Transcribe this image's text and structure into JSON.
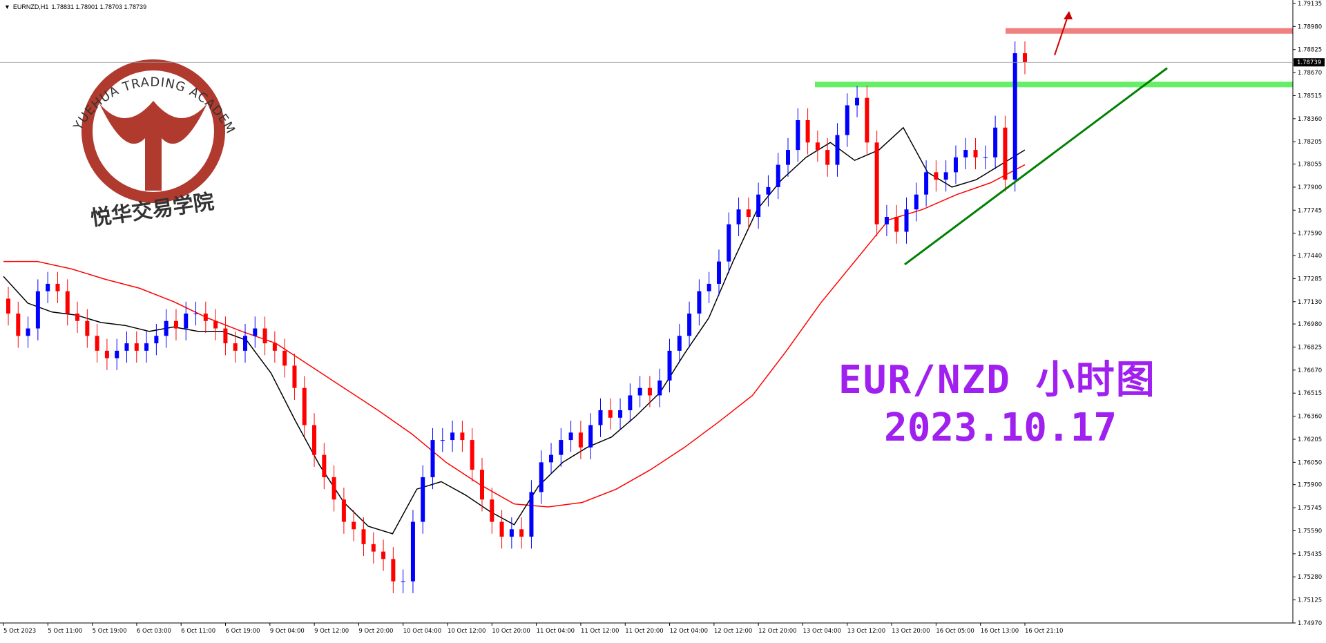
{
  "header": {
    "dropdown_glyph": "▼",
    "symbol": "EURNZD,H1",
    "ohlc": "1.78831 1.78901 1.78703 1.78739"
  },
  "watermark": {
    "arc_text": "YUEHUA TRADING ACADEMY",
    "cn_text": "悦华交易学院",
    "color": "#b03a2e"
  },
  "annotation": {
    "title": "EUR/NZD 小时图",
    "date": "2023.10.17",
    "color": "#a020f0"
  },
  "colors": {
    "bull": "#0000ff",
    "bear": "#ff0000",
    "ma_fast": "#000000",
    "ma_slow": "#ff0000",
    "support": "#66ee66",
    "resistance": "#f08080",
    "trendline": "#008000",
    "arrow": "#cc0000"
  },
  "chart_data": {
    "type": "candlestick",
    "symbol": "EURNZD",
    "timeframe": "H1",
    "ylim": [
      1.7497,
      1.7913
    ],
    "current_price": "1.78739",
    "y_ticks": [
      "1.79135",
      "1.78980",
      "1.78825",
      "1.78670",
      "1.78515",
      "1.78360",
      "1.78205",
      "1.78055",
      "1.77900",
      "1.77745",
      "1.77590",
      "1.77440",
      "1.77285",
      "1.77130",
      "1.76980",
      "1.76825",
      "1.76670",
      "1.76515",
      "1.76360",
      "1.76205",
      "1.76050",
      "1.75900",
      "1.75745",
      "1.75590",
      "1.75435",
      "1.75280",
      "1.75125",
      "1.74970"
    ],
    "x_ticks": [
      "5 Oct 2023",
      "5 Oct 11:00",
      "5 Oct 19:00",
      "6 Oct 03:00",
      "6 Oct 11:00",
      "6 Oct 19:00",
      "9 Oct 04:00",
      "9 Oct 12:00",
      "9 Oct 20:00",
      "10 Oct 04:00",
      "10 Oct 12:00",
      "10 Oct 20:00",
      "11 Oct 04:00",
      "11 Oct 12:00",
      "11 Oct 20:00",
      "12 Oct 04:00",
      "12 Oct 12:00",
      "12 Oct 20:00",
      "13 Oct 04:00",
      "13 Oct 12:00",
      "13 Oct 20:00",
      "16 Oct 05:00",
      "16 Oct 13:00",
      "16 Oct 21:10"
    ],
    "closes": [
      1.7705,
      1.769,
      1.7695,
      1.772,
      1.7725,
      1.772,
      1.7705,
      1.77,
      1.769,
      1.768,
      1.7675,
      1.768,
      1.7685,
      1.768,
      1.7685,
      1.769,
      1.77,
      1.7695,
      1.7705,
      1.7705,
      1.77,
      1.7695,
      1.7685,
      1.768,
      1.769,
      1.7695,
      1.7685,
      1.768,
      1.767,
      1.7655,
      1.763,
      1.761,
      1.7595,
      1.758,
      1.7565,
      1.756,
      1.755,
      1.7545,
      1.754,
      1.7525,
      1.7525,
      1.7565,
      1.7595,
      1.762,
      1.762,
      1.7625,
      1.762,
      1.76,
      1.758,
      1.7565,
      1.7555,
      1.756,
      1.7555,
      1.7585,
      1.7605,
      1.761,
      1.762,
      1.7625,
      1.7615,
      1.763,
      1.764,
      1.7635,
      1.764,
      1.765,
      1.7655,
      1.765,
      1.766,
      1.768,
      1.769,
      1.7705,
      1.772,
      1.7725,
      1.774,
      1.7765,
      1.7775,
      1.777,
      1.7785,
      1.779,
      1.7805,
      1.7815,
      1.7835,
      1.782,
      1.7815,
      1.7805,
      1.7825,
      1.7845,
      1.785,
      1.782,
      1.7765,
      1.777,
      1.776,
      1.7775,
      1.7785,
      1.78,
      1.7795,
      1.78,
      1.781,
      1.7815,
      1.781,
      1.781,
      1.783,
      1.7795,
      1.788,
      1.78739
    ],
    "opens_first": 1.7715,
    "hl_wick": 0.0008,
    "ma_fast_values": [
      1.773,
      1.7712,
      1.7706,
      1.7704,
      1.7699,
      1.7697,
      1.7693,
      1.7696,
      1.7693,
      1.7693,
      1.7687,
      1.7665,
      1.7633,
      1.7603,
      1.7578,
      1.7562,
      1.7557,
      1.7587,
      1.7592,
      1.7583,
      1.7572,
      1.7563,
      1.7589,
      1.7605,
      1.7615,
      1.7622,
      1.7636,
      1.7652,
      1.7678,
      1.7702,
      1.774,
      1.7775,
      1.7795,
      1.781,
      1.782,
      1.7808,
      1.7815,
      1.783,
      1.78,
      1.779,
      1.7795,
      1.7805,
      1.7815
    ],
    "ma_slow_values": [
      1.774,
      1.774,
      1.7735,
      1.7728,
      1.7722,
      1.7713,
      1.7702,
      1.7693,
      1.7685,
      1.767,
      1.7655,
      1.764,
      1.7624,
      1.7605,
      1.759,
      1.7577,
      1.7575,
      1.7578,
      1.7587,
      1.76,
      1.7615,
      1.7632,
      1.765,
      1.768,
      1.7712,
      1.774,
      1.7768,
      1.7775,
      1.7785,
      1.7793,
      1.7805
    ],
    "support_level": 1.7859,
    "resistance_level": 1.7895,
    "trendline": {
      "from": 1.7738,
      "to": 1.787
    },
    "grid": false,
    "legend": "none"
  }
}
